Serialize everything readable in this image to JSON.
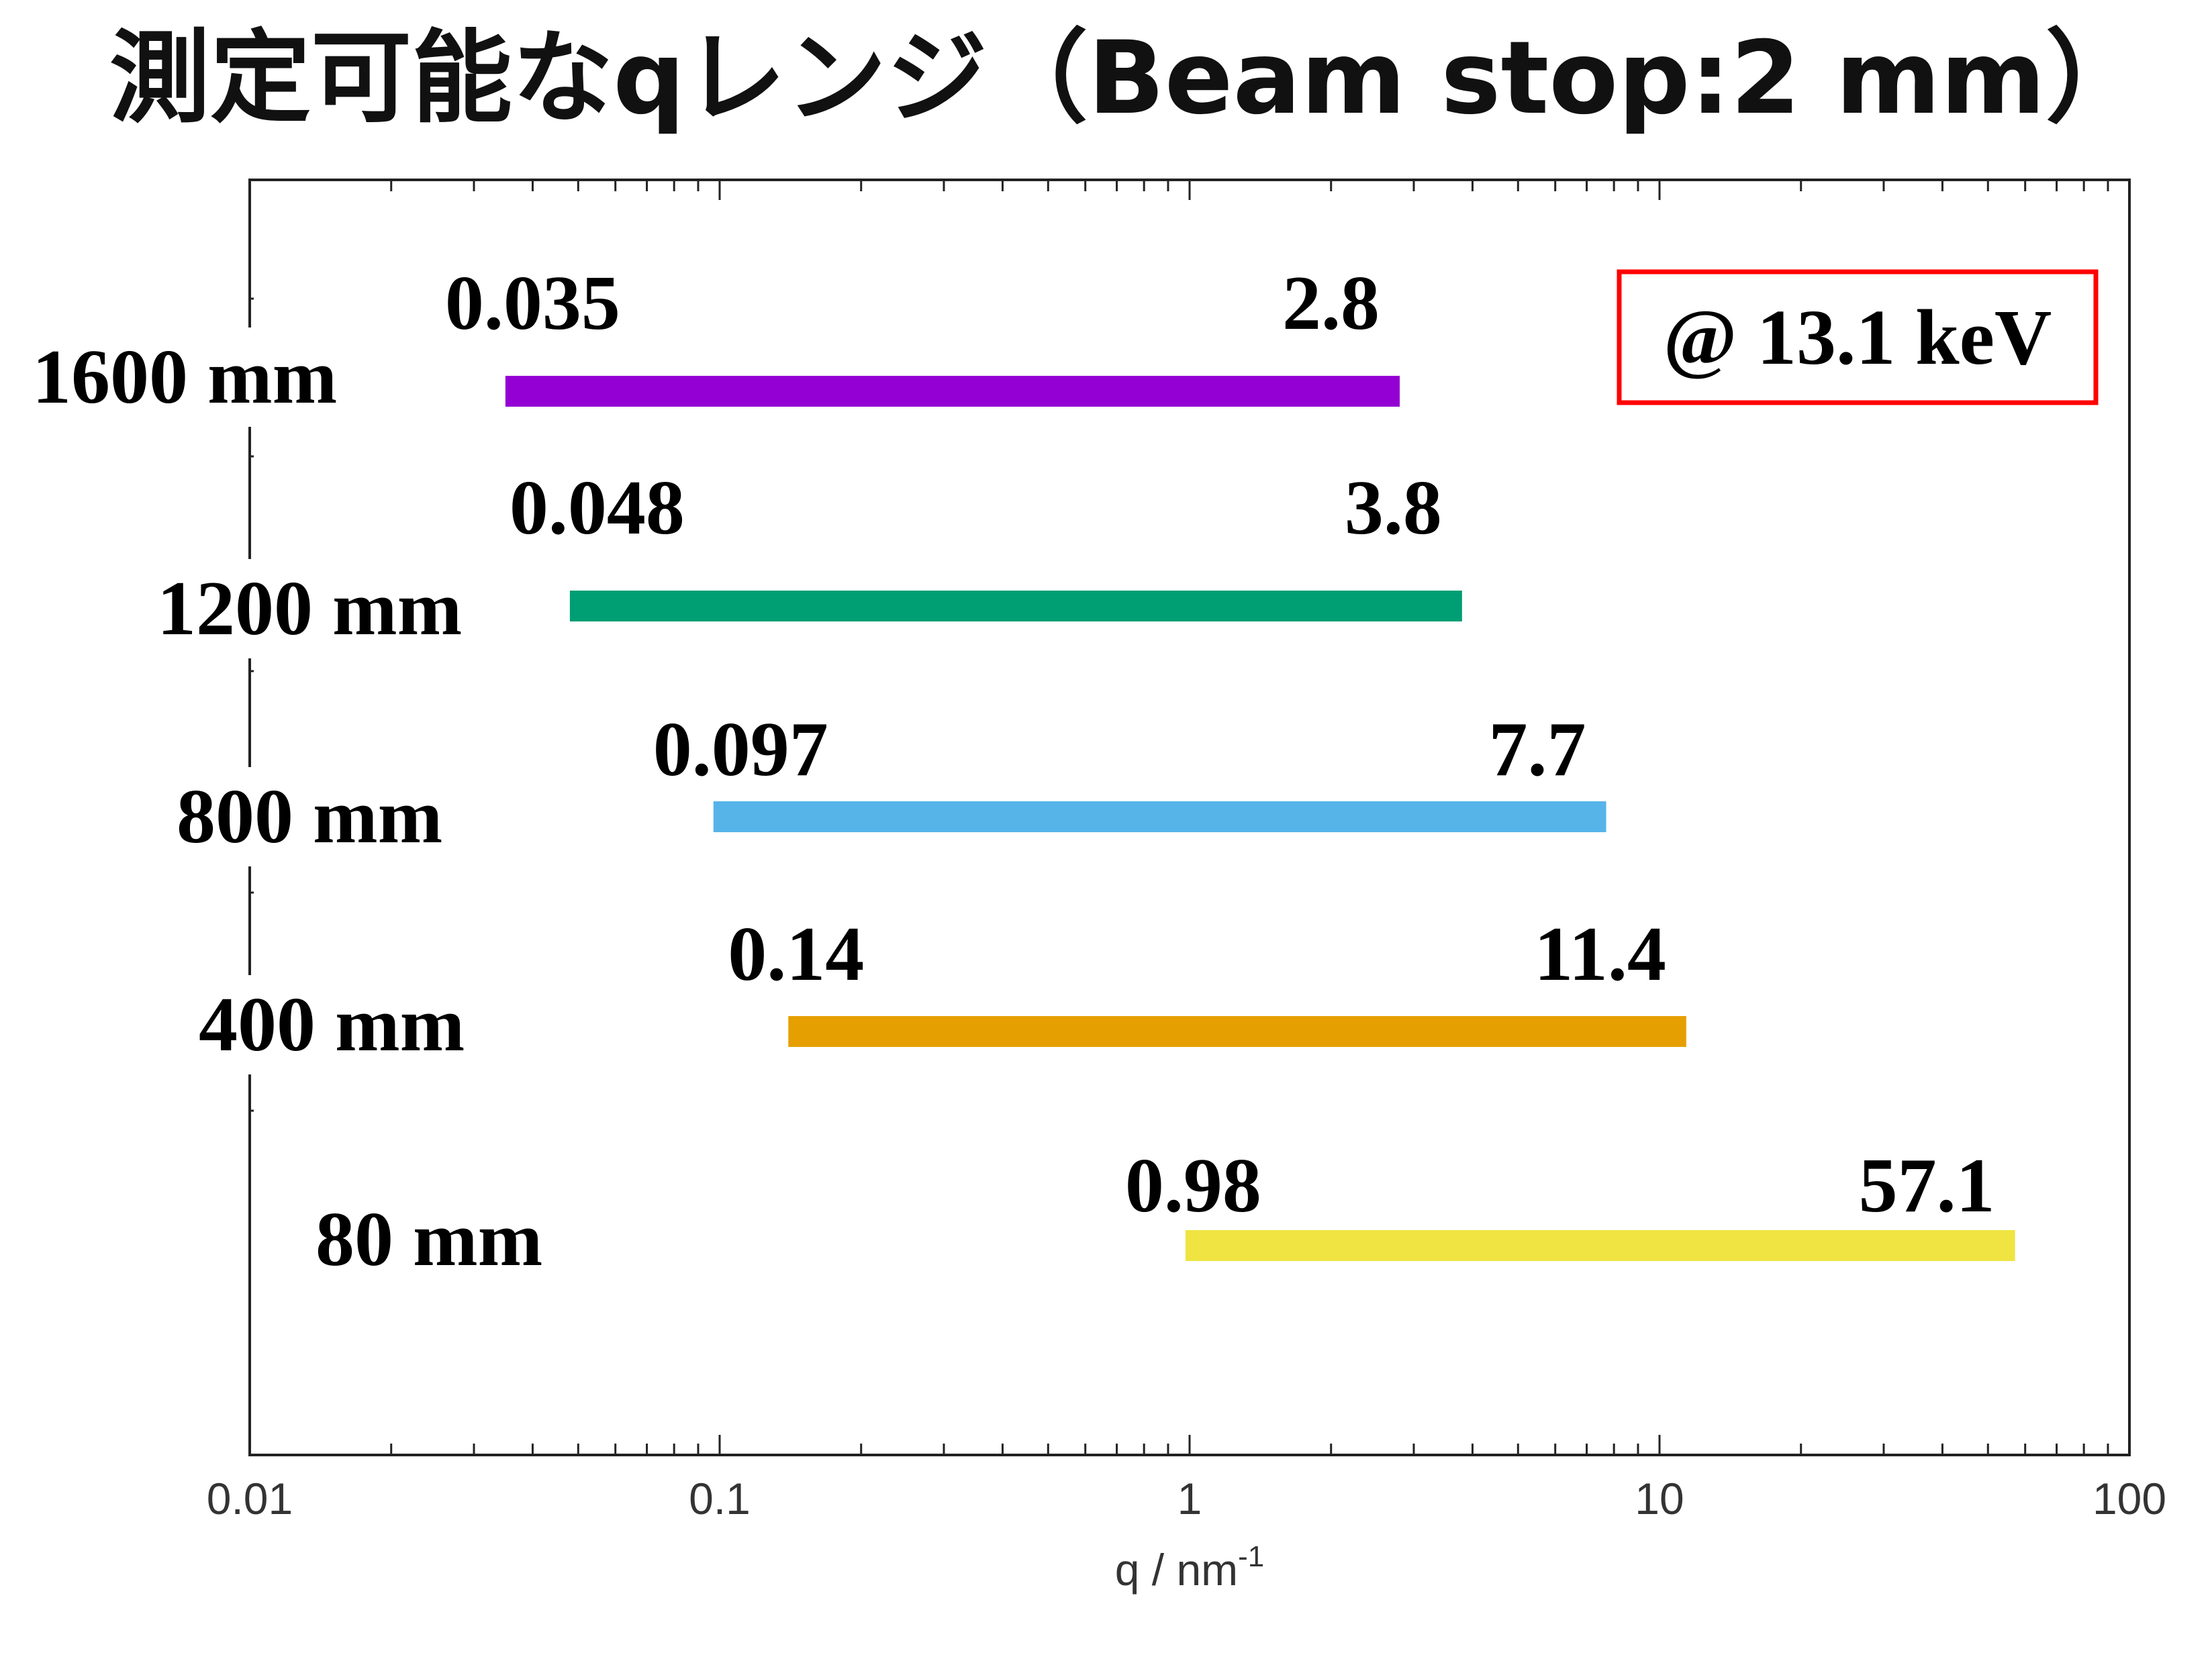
{
  "chart_data": {
    "type": "bar",
    "title": "測定可能なqレンジ（Beam stop:2 mm）",
    "xlabel": "q / nm",
    "xlabel_sup": "-1",
    "x_scale": "log",
    "xlim": [
      0.01,
      100
    ],
    "x_ticks": [
      {
        "value": 0.01,
        "label": "0.01"
      },
      {
        "value": 0.1,
        "label": "0.1"
      },
      {
        "value": 1,
        "label": "1"
      },
      {
        "value": 10,
        "label": "10"
      },
      {
        "value": 100,
        "label": "100"
      }
    ],
    "annotation": "@ 13.1 keV",
    "grid": false,
    "series": [
      {
        "category": "1600 mm",
        "q_min": 0.035,
        "q_max": 2.8,
        "min_label": "0.035",
        "max_label": "2.8",
        "color": "#9400D3"
      },
      {
        "category": "1200 mm",
        "q_min": 0.048,
        "q_max": 3.8,
        "min_label": "0.048",
        "max_label": "3.8",
        "color": "#009E73"
      },
      {
        "category": "800 mm",
        "q_min": 0.097,
        "q_max": 7.7,
        "min_label": "0.097",
        "max_label": "7.7",
        "color": "#56B4E9"
      },
      {
        "category": "400 mm",
        "q_min": 0.14,
        "q_max": 11.4,
        "min_label": "0.14",
        "max_label": "11.4",
        "color": "#E69F00"
      },
      {
        "category": "80 mm",
        "q_min": 0.98,
        "q_max": 57.1,
        "min_label": "0.98",
        "max_label": "57.1",
        "color": "#F0E442"
      }
    ]
  }
}
